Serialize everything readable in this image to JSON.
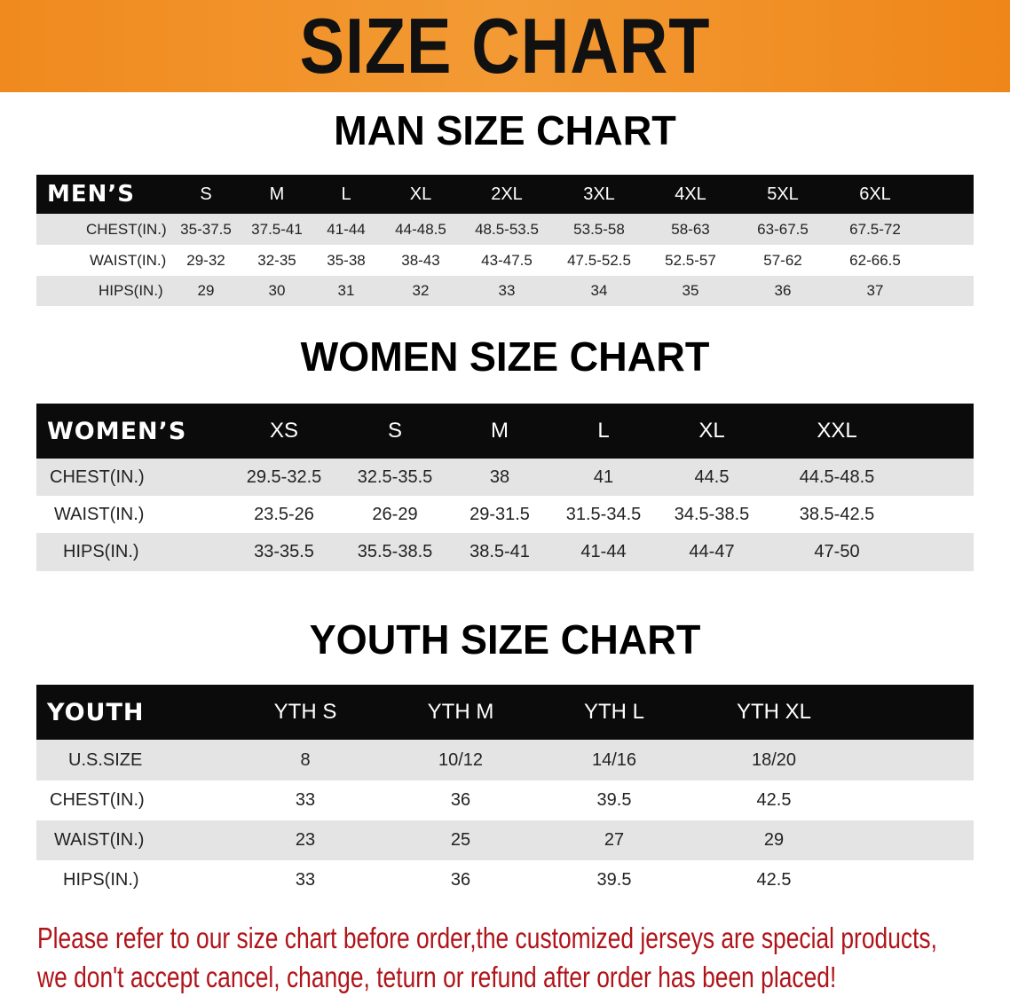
{
  "banner_title": "SIZE CHART",
  "men": {
    "title": "MAN SIZE CHART",
    "header": "MEN’S",
    "sizes": [
      "S",
      "M",
      "L",
      "XL",
      "2XL",
      "3XL",
      "4XL",
      "5XL",
      "6XL"
    ],
    "rows": [
      {
        "label": "CHEST(IN.)",
        "values": [
          "35-37.5",
          "37.5-41",
          "41-44",
          "44-48.5",
          "48.5-53.5",
          "53.5-58",
          "58-63",
          "63-67.5",
          "67.5-72"
        ]
      },
      {
        "label": "WAIST(IN.)",
        "values": [
          "29-32",
          "32-35",
          "35-38",
          "38-43",
          "43-47.5",
          "47.5-52.5",
          "52.5-57",
          "57-62",
          "62-66.5"
        ]
      },
      {
        "label": "HIPS(IN.)",
        "values": [
          "29",
          "30",
          "31",
          "32",
          "33",
          "34",
          "35",
          "36",
          "37"
        ]
      }
    ]
  },
  "women": {
    "title": "WOMEN SIZE CHART",
    "header": "WOMEN’S",
    "sizes": [
      "XS",
      "S",
      "M",
      "L",
      "XL",
      "XXL"
    ],
    "rows": [
      {
        "label": "CHEST(IN.)",
        "values": [
          "29.5-32.5",
          "32.5-35.5",
          "38",
          "41",
          "44.5",
          "44.5-48.5"
        ]
      },
      {
        "label": "WAIST(IN.)",
        "values": [
          "23.5-26",
          "26-29",
          "29-31.5",
          "31.5-34.5",
          "34.5-38.5",
          "38.5-42.5"
        ]
      },
      {
        "label": "HIPS(IN.)",
        "values": [
          "33-35.5",
          "35.5-38.5",
          "38.5-41",
          "41-44",
          "44-47",
          "47-50"
        ]
      }
    ]
  },
  "youth": {
    "title": "YOUTH SIZE CHART",
    "header": "YOUTH",
    "sizes": [
      "YTH S",
      "YTH M",
      "YTH L",
      "YTH XL"
    ],
    "rows": [
      {
        "label": "U.S.SIZE",
        "values": [
          "8",
          "10/12",
          "14/16",
          "18/20"
        ]
      },
      {
        "label": "CHEST(IN.)",
        "values": [
          "33",
          "36",
          "39.5",
          "42.5"
        ]
      },
      {
        "label": "WAIST(IN.)",
        "values": [
          "23",
          "25",
          "27",
          "29"
        ]
      },
      {
        "label": "HIPS(IN.)",
        "values": [
          "33",
          "36",
          "39.5",
          "42.5"
        ]
      }
    ]
  },
  "note_lines": [
    "Please refer to our size chart before order,the customized jerseys are special products,",
    "we don't accept cancel, change, teturn or refund after order has been placed!"
  ],
  "colors": {
    "banner": "#f08a1e",
    "header_row": "#0b0b0b",
    "note": "#b0141a"
  }
}
